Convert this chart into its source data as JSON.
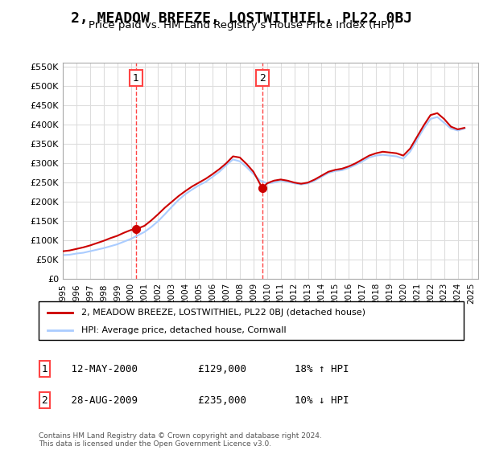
{
  "title": "2, MEADOW BREEZE, LOSTWITHIEL, PL22 0BJ",
  "subtitle": "Price paid vs. HM Land Registry's House Price Index (HPI)",
  "title_fontsize": 13,
  "subtitle_fontsize": 10,
  "background_color": "#ffffff",
  "plot_bg_color": "#ffffff",
  "grid_color": "#dddddd",
  "ylabel_ticks": [
    "£0",
    "£50K",
    "£100K",
    "£150K",
    "£200K",
    "£250K",
    "£300K",
    "£350K",
    "£400K",
    "£450K",
    "£500K",
    "£550K"
  ],
  "ytick_values": [
    0,
    50000,
    100000,
    150000,
    200000,
    250000,
    300000,
    350000,
    400000,
    450000,
    500000,
    550000
  ],
  "ylim": [
    0,
    560000
  ],
  "xlim_start": 1995.0,
  "xlim_end": 2025.5,
  "xtick_years": [
    1995,
    1996,
    1997,
    1998,
    1999,
    2000,
    2001,
    2002,
    2003,
    2004,
    2005,
    2006,
    2007,
    2008,
    2009,
    2010,
    2011,
    2012,
    2013,
    2014,
    2015,
    2016,
    2017,
    2018,
    2019,
    2020,
    2021,
    2022,
    2023,
    2024,
    2025
  ],
  "hpi_color": "#aaccff",
  "price_color": "#cc0000",
  "vline_color": "#ff4444",
  "transaction1_x": 2000.37,
  "transaction1_y": 129000,
  "transaction2_x": 2009.66,
  "transaction2_y": 235000,
  "legend_label_price": "2, MEADOW BREEZE, LOSTWITHIEL, PL22 0BJ (detached house)",
  "legend_label_hpi": "HPI: Average price, detached house, Cornwall",
  "table_rows": [
    {
      "num": "1",
      "date": "12-MAY-2000",
      "price": "£129,000",
      "hpi": "18% ↑ HPI"
    },
    {
      "num": "2",
      "date": "28-AUG-2009",
      "price": "£235,000",
      "hpi": "10% ↓ HPI"
    }
  ],
  "footer": "Contains HM Land Registry data © Crown copyright and database right 2024.\nThis data is licensed under the Open Government Licence v3.0.",
  "hpi_x": [
    1995.0,
    1995.5,
    1996.0,
    1996.5,
    1997.0,
    1997.5,
    1998.0,
    1998.5,
    1999.0,
    1999.5,
    2000.0,
    2000.5,
    2001.0,
    2001.5,
    2002.0,
    2002.5,
    2003.0,
    2003.5,
    2004.0,
    2004.5,
    2005.0,
    2005.5,
    2006.0,
    2006.5,
    2007.0,
    2007.5,
    2008.0,
    2008.5,
    2009.0,
    2009.5,
    2010.0,
    2010.5,
    2011.0,
    2011.5,
    2012.0,
    2012.5,
    2013.0,
    2013.5,
    2014.0,
    2014.5,
    2015.0,
    2015.5,
    2016.0,
    2016.5,
    2017.0,
    2017.5,
    2018.0,
    2018.5,
    2019.0,
    2019.5,
    2020.0,
    2020.5,
    2021.0,
    2021.5,
    2022.0,
    2022.5,
    2023.0,
    2023.5,
    2024.0,
    2024.5
  ],
  "hpi_y": [
    62000,
    63000,
    66000,
    68000,
    72000,
    76000,
    80000,
    85000,
    90000,
    97000,
    104000,
    113000,
    122000,
    135000,
    150000,
    168000,
    187000,
    205000,
    220000,
    232000,
    243000,
    252000,
    265000,
    278000,
    295000,
    310000,
    305000,
    290000,
    272000,
    255000,
    248000,
    250000,
    255000,
    252000,
    248000,
    245000,
    248000,
    255000,
    265000,
    275000,
    280000,
    282000,
    288000,
    296000,
    305000,
    315000,
    320000,
    322000,
    320000,
    318000,
    312000,
    330000,
    360000,
    390000,
    415000,
    420000,
    405000,
    390000,
    385000,
    390000
  ],
  "price_x": [
    1995.0,
    1995.5,
    1996.0,
    1996.5,
    1997.0,
    1997.5,
    1998.0,
    1998.5,
    1999.0,
    1999.5,
    2000.0,
    2000.37,
    2001.0,
    2001.5,
    2002.0,
    2002.5,
    2003.0,
    2003.5,
    2004.0,
    2004.5,
    2005.0,
    2005.5,
    2006.0,
    2006.5,
    2007.0,
    2007.5,
    2008.0,
    2008.5,
    2009.0,
    2009.66,
    2010.0,
    2010.5,
    2011.0,
    2011.5,
    2012.0,
    2012.5,
    2013.0,
    2013.5,
    2014.0,
    2014.5,
    2015.0,
    2015.5,
    2016.0,
    2016.5,
    2017.0,
    2017.5,
    2018.0,
    2018.5,
    2019.0,
    2019.5,
    2020.0,
    2020.5,
    2021.0,
    2021.5,
    2022.0,
    2022.5,
    2023.0,
    2023.5,
    2024.0,
    2024.5
  ],
  "price_y": [
    72000,
    74000,
    78000,
    82000,
    87000,
    93000,
    99000,
    106000,
    112000,
    120000,
    127000,
    129000,
    138000,
    152000,
    168000,
    185000,
    200000,
    215000,
    228000,
    240000,
    250000,
    260000,
    272000,
    285000,
    300000,
    318000,
    315000,
    298000,
    278000,
    235000,
    248000,
    255000,
    258000,
    255000,
    250000,
    247000,
    250000,
    258000,
    268000,
    278000,
    283000,
    286000,
    292000,
    300000,
    310000,
    320000,
    326000,
    330000,
    328000,
    326000,
    320000,
    338000,
    368000,
    398000,
    425000,
    430000,
    415000,
    395000,
    388000,
    392000
  ]
}
